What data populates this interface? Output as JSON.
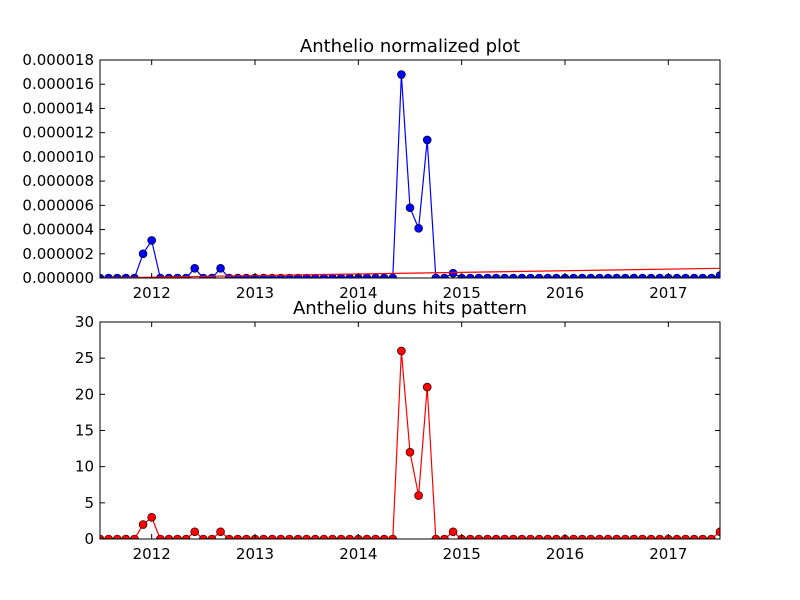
{
  "chart_data": [
    {
      "type": "line",
      "title": "Anthelio normalized plot",
      "xlabel": "",
      "ylabel": "",
      "x_axis": {
        "unit": "date",
        "range": [
          "2011-07",
          "2017-07"
        ],
        "ticks": [
          "2012",
          "2013",
          "2014",
          "2015",
          "2016",
          "2017"
        ]
      },
      "ylim": [
        0,
        1.8e-05
      ],
      "y_ticks": [
        "0.000000",
        "0.000002",
        "0.000004",
        "0.000006",
        "0.000008",
        "0.000010",
        "0.000012",
        "0.000014",
        "0.000016",
        "0.000018"
      ],
      "grid": false,
      "legend": "none",
      "series": [
        {
          "color": "#0000ff",
          "marker": "circle",
          "x": [
            "2011-07",
            "2011-08",
            "2011-09",
            "2011-10",
            "2011-11",
            "2011-12",
            "2012-01",
            "2012-02",
            "2012-03",
            "2012-04",
            "2012-05",
            "2012-06",
            "2012-07",
            "2012-08",
            "2012-09",
            "2012-10",
            "2012-11",
            "2012-12",
            "2013-01",
            "2013-02",
            "2013-03",
            "2013-04",
            "2013-05",
            "2013-06",
            "2013-07",
            "2013-08",
            "2013-09",
            "2013-10",
            "2013-11",
            "2013-12",
            "2014-01",
            "2014-02",
            "2014-03",
            "2014-04",
            "2014-05",
            "2014-06",
            "2014-07",
            "2014-08",
            "2014-09",
            "2014-10",
            "2014-11",
            "2014-12",
            "2015-01",
            "2015-02",
            "2015-03",
            "2015-04",
            "2015-05",
            "2015-06",
            "2015-07",
            "2015-08",
            "2015-09",
            "2015-10",
            "2015-11",
            "2015-12",
            "2016-01",
            "2016-02",
            "2016-03",
            "2016-04",
            "2016-05",
            "2016-06",
            "2016-07",
            "2016-08",
            "2016-09",
            "2016-10",
            "2016-11",
            "2016-12",
            "2017-01",
            "2017-02",
            "2017-03",
            "2017-04",
            "2017-05",
            "2017-06",
            "2017-07"
          ],
          "y": [
            0,
            0,
            0,
            0,
            0,
            2e-06,
            3.1e-06,
            0,
            0,
            0,
            0,
            8e-07,
            0,
            0,
            8e-07,
            0,
            0,
            0,
            0,
            0,
            0,
            0,
            0,
            0,
            0,
            0,
            0,
            0,
            0,
            0,
            0,
            0,
            0,
            0,
            0,
            1.68e-05,
            5.8e-06,
            4.1e-06,
            1.14e-05,
            0,
            0,
            4e-07,
            0,
            0,
            0,
            0,
            0,
            0,
            0,
            0,
            0,
            0,
            0,
            0,
            0,
            0,
            0,
            0,
            0,
            0,
            0,
            0,
            0,
            0,
            0,
            0,
            0,
            0,
            0,
            0,
            0,
            0,
            2e-07
          ]
        },
        {
          "color": "#ff0000",
          "marker": "none",
          "x": [
            "2011-07",
            "2017-07"
          ],
          "y": [
            0,
            8e-07
          ]
        }
      ]
    },
    {
      "type": "line",
      "title": "Anthelio duns hits pattern",
      "xlabel": "",
      "ylabel": "",
      "x_axis": {
        "unit": "date",
        "range": [
          "2011-07",
          "2017-07"
        ],
        "ticks": [
          "2012",
          "2013",
          "2014",
          "2015",
          "2016",
          "2017"
        ]
      },
      "ylim": [
        0,
        30
      ],
      "y_ticks": [
        "0",
        "5",
        "10",
        "15",
        "20",
        "25",
        "30"
      ],
      "grid": false,
      "legend": "none",
      "series": [
        {
          "color": "#ff0000",
          "marker": "circle",
          "x": [
            "2011-07",
            "2011-08",
            "2011-09",
            "2011-10",
            "2011-11",
            "2011-12",
            "2012-01",
            "2012-02",
            "2012-03",
            "2012-04",
            "2012-05",
            "2012-06",
            "2012-07",
            "2012-08",
            "2012-09",
            "2012-10",
            "2012-11",
            "2012-12",
            "2013-01",
            "2013-02",
            "2013-03",
            "2013-04",
            "2013-05",
            "2013-06",
            "2013-07",
            "2013-08",
            "2013-09",
            "2013-10",
            "2013-11",
            "2013-12",
            "2014-01",
            "2014-02",
            "2014-03",
            "2014-04",
            "2014-05",
            "2014-06",
            "2014-07",
            "2014-08",
            "2014-09",
            "2014-10",
            "2014-11",
            "2014-12",
            "2015-01",
            "2015-02",
            "2015-03",
            "2015-04",
            "2015-05",
            "2015-06",
            "2015-07",
            "2015-08",
            "2015-09",
            "2015-10",
            "2015-11",
            "2015-12",
            "2016-01",
            "2016-02",
            "2016-03",
            "2016-04",
            "2016-05",
            "2016-06",
            "2016-07",
            "2016-08",
            "2016-09",
            "2016-10",
            "2016-11",
            "2016-12",
            "2017-01",
            "2017-02",
            "2017-03",
            "2017-04",
            "2017-05",
            "2017-06",
            "2017-07"
          ],
          "y": [
            0,
            0,
            0,
            0,
            0,
            2,
            3,
            0,
            0,
            0,
            0,
            1,
            0,
            0,
            1,
            0,
            0,
            0,
            0,
            0,
            0,
            0,
            0,
            0,
            0,
            0,
            0,
            0,
            0,
            0,
            0,
            0,
            0,
            0,
            0,
            26,
            12,
            6,
            21,
            0,
            0,
            1,
            0,
            0,
            0,
            0,
            0,
            0,
            0,
            0,
            0,
            0,
            0,
            0,
            0,
            0,
            0,
            0,
            0,
            0,
            0,
            0,
            0,
            0,
            0,
            0,
            0,
            0,
            0,
            0,
            0,
            0,
            1
          ]
        }
      ]
    }
  ]
}
